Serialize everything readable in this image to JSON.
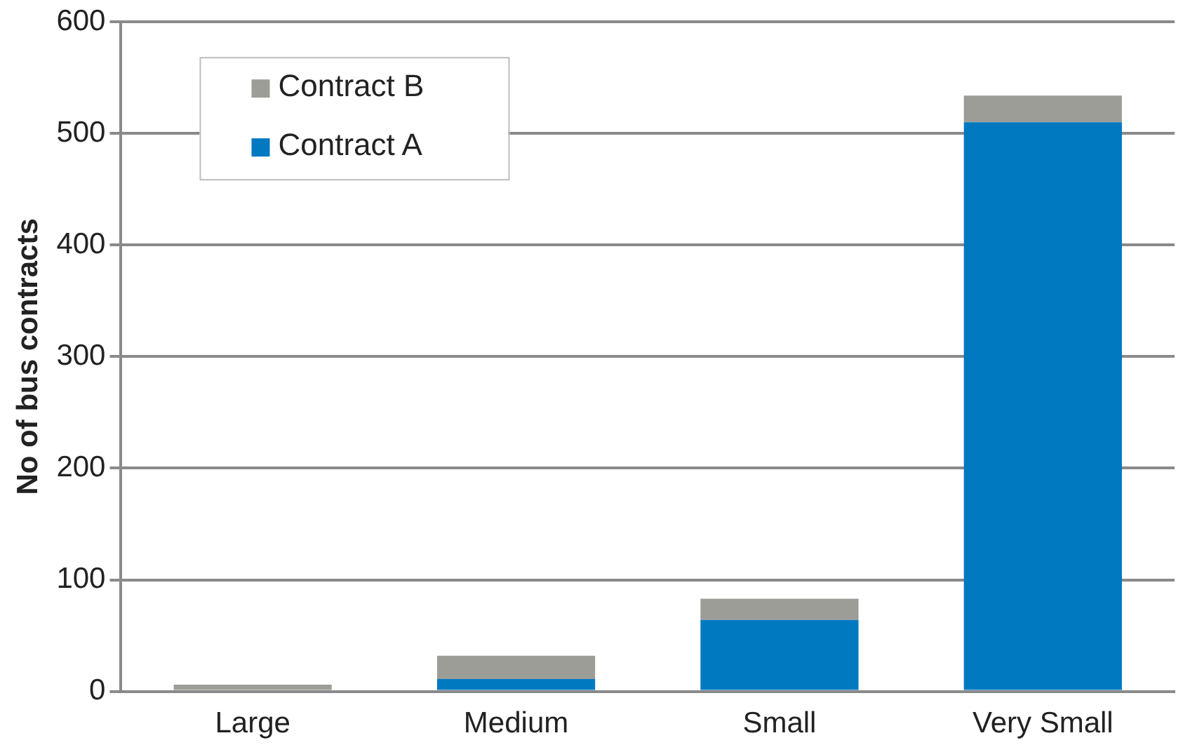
{
  "chart_data": {
    "type": "bar",
    "ylabel": "No of bus contracts",
    "categories": [
      "Large",
      "Medium",
      "Small",
      "Very Small"
    ],
    "stacked": true,
    "series": [
      {
        "name": "Contract A",
        "color": "#0079c1",
        "values": [
          0,
          11,
          64,
          510
        ]
      },
      {
        "name": "Contract B",
        "color": "#9d9d97",
        "values": [
          6,
          21,
          19,
          24
        ]
      }
    ],
    "ylim": [
      0,
      600
    ],
    "yticks": [
      0,
      100,
      200,
      300,
      400,
      500,
      600
    ],
    "grid": "y",
    "legend": "top left"
  }
}
